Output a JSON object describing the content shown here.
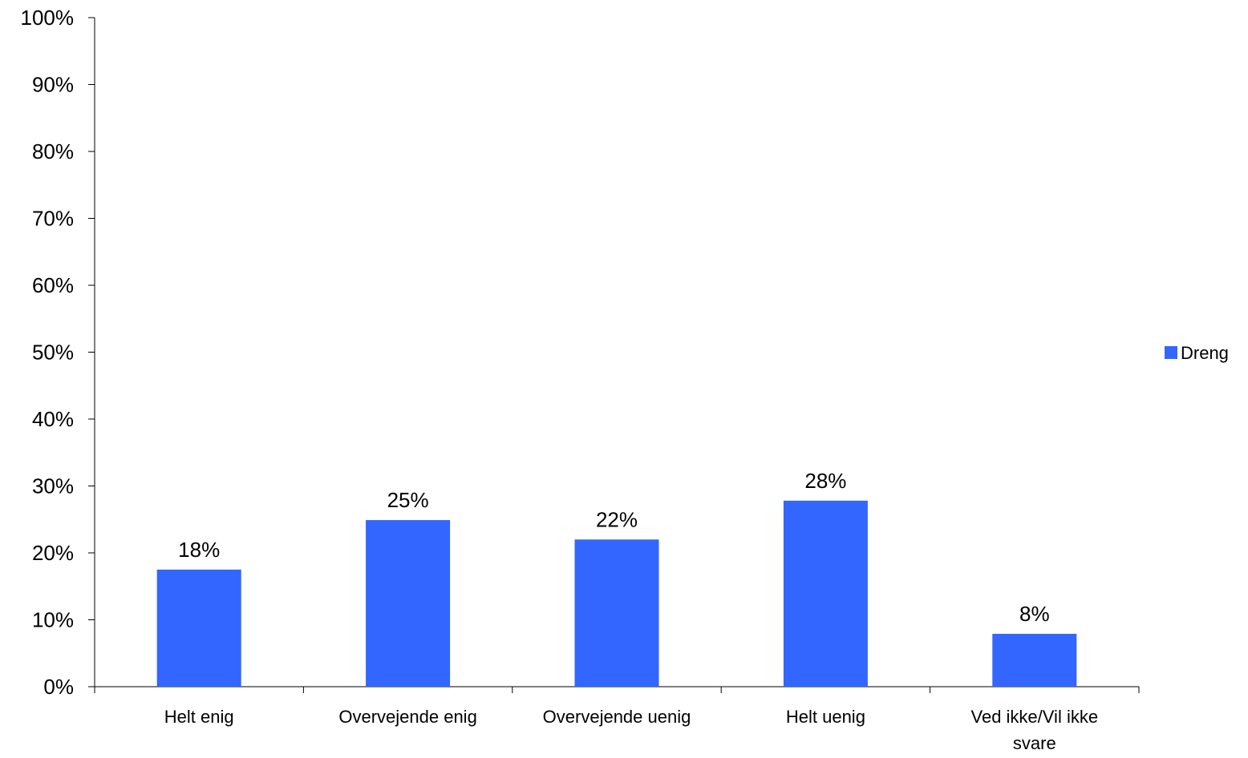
{
  "chart_data": {
    "type": "bar",
    "title": "",
    "xlabel": "",
    "ylabel": "",
    "categories": [
      [
        "Helt enig"
      ],
      [
        "Overvejende enig"
      ],
      [
        "Overvejende uenig"
      ],
      [
        "Helt uenig"
      ],
      [
        "Ved ikke/Vil ikke",
        "svare"
      ]
    ],
    "series": [
      {
        "name": "Dreng",
        "color": "#3366FF",
        "values": [
          17.5,
          24.9,
          22.0,
          27.8,
          7.9
        ],
        "data_labels": [
          "18%",
          "25%",
          "22%",
          "28%",
          "8%"
        ]
      }
    ],
    "ylim": [
      0,
      100
    ],
    "yticks": [
      0,
      10,
      20,
      30,
      40,
      50,
      60,
      70,
      80,
      90,
      100
    ],
    "ytick_labels": [
      "0%",
      "10%",
      "20%",
      "30%",
      "40%",
      "50%",
      "60%",
      "70%",
      "80%",
      "90%",
      "100%"
    ],
    "grid": false,
    "legend": {
      "placement": "right",
      "entries": [
        "Dreng"
      ]
    }
  }
}
